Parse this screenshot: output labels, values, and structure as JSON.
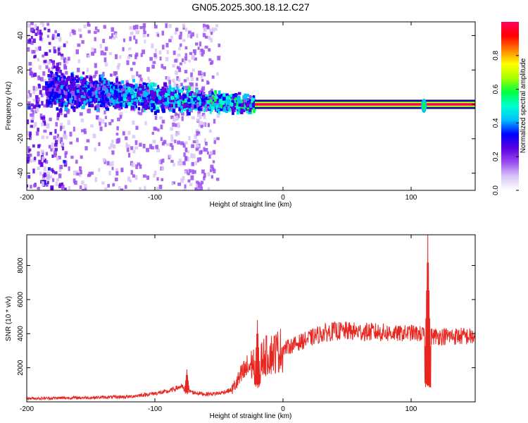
{
  "title": "GN05.2025.300.18.12.C27",
  "chart_data": [
    {
      "type": "heatmap",
      "title": "GN05.2025.300.18.12.C27",
      "xlabel": "Height of straight line (km)",
      "ylabel": "Frequency (Hz)",
      "xlim": [
        -200,
        150
      ],
      "ylim": [
        -50,
        48
      ],
      "x_ticks": [
        -200,
        -100,
        0,
        100
      ],
      "y_ticks": [
        -40,
        -20,
        0,
        20,
        40
      ],
      "colorbar": {
        "label": "Normalized spectral amplitude",
        "range": [
          0,
          1
        ],
        "ticks": [
          0.0,
          0.2,
          0.4,
          0.6,
          0.8
        ],
        "colors": [
          "#ffffff",
          "#d9c6f5",
          "#9a4df0",
          "#5a00e0",
          "#0000ff",
          "#00bfff",
          "#00ffd0",
          "#00ff40",
          "#a8ff00",
          "#ffff00",
          "#ff8000",
          "#ff0000",
          "#ff0060"
        ]
      },
      "features": {
        "carrier_line": {
          "x_start": -22,
          "x_end": 150,
          "freq": 0,
          "peak_amplitude": 0.9
        },
        "noise_region": {
          "x_start": -200,
          "x_end": -50,
          "freq_range": [
            -50,
            48
          ]
        },
        "signal_band": {
          "x_start": -185,
          "x_end": -22,
          "center_freq_start": 9,
          "center_freq_end": 0
        },
        "burst_at": 110
      }
    },
    {
      "type": "line",
      "xlabel": "Height of straight line (km)",
      "ylabel": "SNR (10 * v/v)",
      "xlim": [
        -200,
        150
      ],
      "ylim": [
        0,
        9800
      ],
      "x_ticks": [
        -200,
        -100,
        0,
        100
      ],
      "y_ticks": [
        2000,
        4000,
        6000,
        8000
      ],
      "series": [
        {
          "name": "SNR",
          "color": "#e8251f",
          "envelope": {
            "x": [
              -200,
              -150,
              -120,
              -100,
              -90,
              -80,
              -70,
              -60,
              -50,
              -40,
              -30,
              -20,
              -10,
              0,
              10,
              20,
              30,
              40,
              50,
              60,
              70,
              80,
              90,
              100,
              110,
              115,
              120,
              130,
              140,
              150
            ],
            "y": [
              200,
              250,
              300,
              500,
              600,
              900,
              550,
              450,
              500,
              700,
              1800,
              2500,
              2800,
              3100,
              3400,
              3700,
              4000,
              4150,
              4150,
              4100,
              4100,
              4050,
              4000,
              4050,
              3950,
              3850,
              3850,
              3850,
              3850,
              3800
            ]
          },
          "spikes": [
            {
              "x": 113,
              "high": 9800,
              "low": 800
            },
            {
              "x": -20,
              "high": 4800,
              "low": 800
            },
            {
              "x": -75,
              "high": 1900,
              "low": 400
            }
          ]
        }
      ]
    }
  ]
}
